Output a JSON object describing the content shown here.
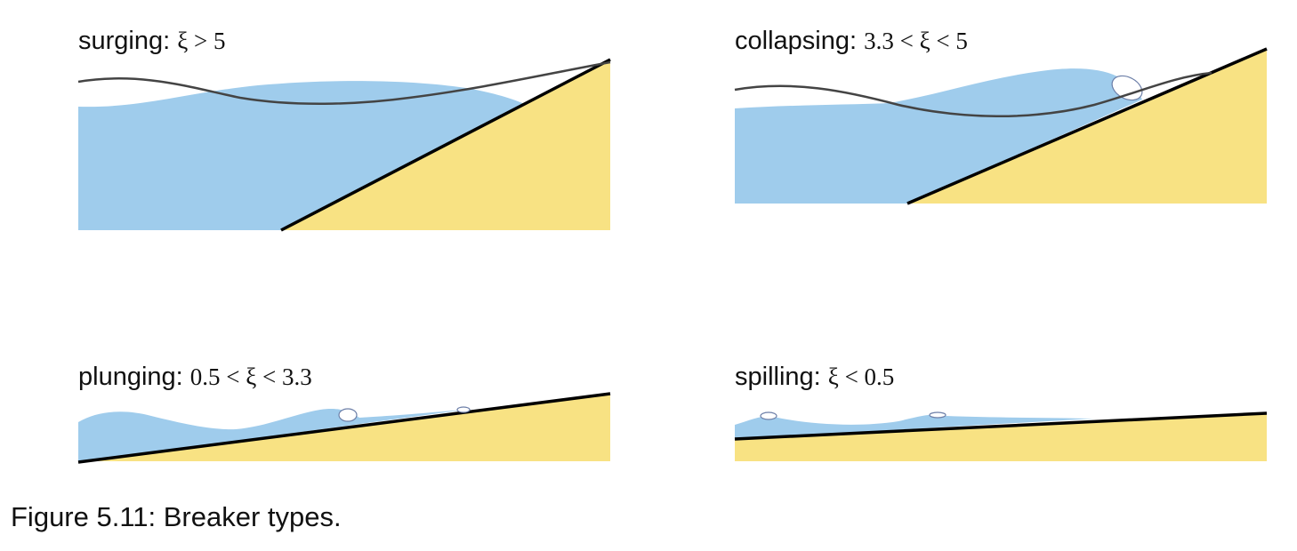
{
  "colors": {
    "water": "#9fccec",
    "sand": "#f8e283",
    "seabed_line": "#000000",
    "wave_outline": "#444444",
    "foam": "#ffffff",
    "foam_stroke": "#6d7fa8"
  },
  "panels": [
    {
      "id": "surging",
      "label": "surging:",
      "condition": "ξ > 5"
    },
    {
      "id": "collapsing",
      "label": "collapsing:",
      "condition": "3.3 < ξ < 5"
    },
    {
      "id": "plunging",
      "label": "plunging:",
      "condition": "0.5 < ξ < 3.3"
    },
    {
      "id": "spilling",
      "label": "spilling:",
      "condition": "ξ < 0.5"
    }
  ],
  "caption": "Figure 5.11:  Breaker types."
}
